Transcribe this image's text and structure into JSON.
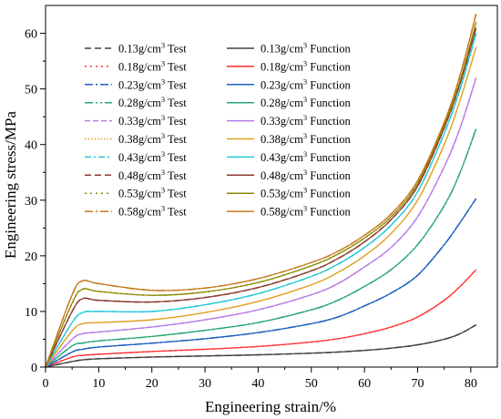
{
  "chart_data": {
    "type": "line",
    "xlabel": "Engineering strain/%",
    "ylabel": "Engineering stress/MPa",
    "xlim": [
      0,
      85
    ],
    "ylim": [
      0,
      65
    ],
    "xticks": [
      0,
      10,
      20,
      30,
      40,
      50,
      60,
      70,
      80
    ],
    "yticks": [
      0,
      10,
      20,
      30,
      40,
      50,
      60
    ],
    "grid": false,
    "legend_position": "top-left",
    "x": [
      0,
      5,
      7,
      10,
      20,
      30,
      40,
      50,
      55,
      60,
      65,
      70,
      75,
      78,
      81
    ],
    "series": [
      {
        "density": "0.13",
        "kind": "Test",
        "name": "0.13g/cm3 Test",
        "color": "#404040",
        "dash": "7,4",
        "values": [
          0,
          1.0,
          1.3,
          1.5,
          1.8,
          2.0,
          2.2,
          2.5,
          2.7,
          3.0,
          3.4,
          4.0,
          5.0,
          6.0,
          7.6
        ]
      },
      {
        "density": "0.18",
        "kind": "Test",
        "name": "0.18g/cm3 Test",
        "color": "#ff3333",
        "dash": "2,4",
        "values": [
          0,
          1.8,
          2.1,
          2.3,
          2.8,
          3.2,
          3.7,
          4.5,
          5.1,
          6.0,
          7.2,
          9.0,
          12.0,
          14.5,
          17.5
        ]
      },
      {
        "density": "0.23",
        "kind": "Test",
        "name": "0.23g/cm3 Test",
        "color": "#1f5fbf",
        "dash": "9,3,2,3",
        "values": [
          0,
          2.7,
          3.2,
          3.6,
          4.3,
          5.1,
          6.2,
          7.8,
          9.0,
          11.0,
          13.3,
          16.5,
          22.0,
          26.0,
          30.3
        ]
      },
      {
        "density": "0.28",
        "kind": "Test",
        "name": "0.28g/cm3 Test",
        "color": "#2aa870",
        "dash": "9,3,2,3,2,3",
        "values": [
          0,
          3.8,
          4.3,
          4.7,
          5.5,
          6.6,
          8.0,
          10.3,
          12.0,
          14.5,
          17.5,
          22.0,
          29.0,
          35.0,
          42.8
        ]
      },
      {
        "density": "0.33",
        "kind": "Test",
        "name": "0.33g/cm3 Test",
        "color": "#b87de6",
        "dash": "6,3",
        "values": [
          0,
          5.0,
          6.0,
          6.3,
          7.2,
          8.5,
          10.3,
          13.0,
          15.0,
          18.0,
          21.5,
          27.0,
          36.0,
          43.0,
          52.0
        ]
      },
      {
        "density": "0.38",
        "kind": "Test",
        "name": "0.38g/cm3 Test",
        "color": "#e0a020",
        "dash": "1.5,2",
        "values": [
          0,
          6.5,
          7.8,
          8.0,
          8.5,
          9.8,
          11.8,
          14.8,
          17.0,
          20.0,
          24.0,
          30.0,
          40.0,
          48.0,
          57.5
        ]
      },
      {
        "density": "0.43",
        "kind": "Test",
        "name": "0.43g/cm3 Test",
        "color": "#22c8d8",
        "dash": "7,3,2,3",
        "values": [
          0,
          8.0,
          9.8,
          10.0,
          10.0,
          11.2,
          13.2,
          16.3,
          18.5,
          21.5,
          25.5,
          31.5,
          42.0,
          50.0,
          60.0
        ]
      },
      {
        "density": "0.48",
        "kind": "Test",
        "name": "0.48g/cm3 Test",
        "color": "#8b3a2e",
        "dash": "7,4",
        "values": [
          0,
          10.0,
          12.3,
          12.0,
          11.7,
          12.5,
          14.3,
          17.3,
          19.5,
          22.5,
          26.5,
          32.5,
          43.0,
          51.0,
          61.0
        ]
      },
      {
        "density": "0.53",
        "kind": "Test",
        "name": "0.53g/cm3 Test",
        "color": "#8a8a00",
        "dash": "2,4",
        "values": [
          0,
          11.5,
          14.0,
          13.6,
          12.9,
          13.5,
          15.2,
          18.2,
          20.3,
          23.2,
          27.0,
          33.0,
          43.5,
          51.5,
          62.0
        ]
      },
      {
        "density": "0.58",
        "kind": "Test",
        "name": "0.58g/cm3 Test",
        "color": "#c8781e",
        "dash": "9,3,2,3",
        "values": [
          0,
          13.0,
          15.5,
          15.0,
          13.8,
          14.2,
          15.9,
          18.8,
          20.8,
          23.7,
          27.5,
          33.5,
          44.0,
          52.5,
          63.5
        ]
      },
      {
        "density": "0.13",
        "kind": "Function",
        "name": "0.13g/cm3 Function",
        "color": "#404040",
        "dash": "",
        "values": [
          0,
          1.0,
          1.3,
          1.5,
          1.8,
          2.0,
          2.2,
          2.5,
          2.7,
          3.0,
          3.4,
          4.0,
          5.0,
          6.0,
          7.6
        ]
      },
      {
        "density": "0.18",
        "kind": "Function",
        "name": "0.18g/cm3 Function",
        "color": "#ff2a2a",
        "dash": "",
        "values": [
          0,
          1.8,
          2.1,
          2.3,
          2.8,
          3.2,
          3.7,
          4.5,
          5.1,
          6.0,
          7.2,
          9.0,
          12.0,
          14.5,
          17.5
        ]
      },
      {
        "density": "0.23",
        "kind": "Function",
        "name": "0.23g/cm3 Function",
        "color": "#1f5fbf",
        "dash": "",
        "values": [
          0,
          2.7,
          3.2,
          3.6,
          4.3,
          5.1,
          6.2,
          7.8,
          9.0,
          11.0,
          13.3,
          16.5,
          22.0,
          26.0,
          30.3
        ]
      },
      {
        "density": "0.28",
        "kind": "Function",
        "name": "0.28g/cm3 Function",
        "color": "#2aa870",
        "dash": "",
        "values": [
          0,
          3.8,
          4.3,
          4.7,
          5.5,
          6.6,
          8.0,
          10.3,
          12.0,
          14.5,
          17.5,
          22.0,
          29.0,
          35.0,
          42.8
        ]
      },
      {
        "density": "0.33",
        "kind": "Function",
        "name": "0.33g/cm3 Function",
        "color": "#b87de6",
        "dash": "",
        "values": [
          0,
          5.0,
          6.0,
          6.3,
          7.2,
          8.5,
          10.3,
          13.0,
          15.0,
          18.0,
          21.5,
          27.0,
          36.0,
          43.0,
          52.0
        ]
      },
      {
        "density": "0.38",
        "kind": "Function",
        "name": "0.38g/cm3 Function",
        "color": "#e0a020",
        "dash": "",
        "values": [
          0,
          6.5,
          7.8,
          8.0,
          8.5,
          9.8,
          11.8,
          14.8,
          17.0,
          20.0,
          24.0,
          30.0,
          40.0,
          48.0,
          57.5
        ]
      },
      {
        "density": "0.43",
        "kind": "Function",
        "name": "0.43g/cm3 Function",
        "color": "#22c8d8",
        "dash": "",
        "values": [
          0,
          8.0,
          9.8,
          10.0,
          10.0,
          11.2,
          13.2,
          16.3,
          18.5,
          21.5,
          25.5,
          31.5,
          42.0,
          50.0,
          60.0
        ]
      },
      {
        "density": "0.48",
        "kind": "Function",
        "name": "0.48g/cm3 Function",
        "color": "#8b3a2e",
        "dash": "",
        "values": [
          0,
          10.0,
          12.3,
          12.0,
          11.7,
          12.5,
          14.3,
          17.3,
          19.5,
          22.5,
          26.5,
          32.5,
          43.0,
          51.0,
          61.0
        ]
      },
      {
        "density": "0.53",
        "kind": "Function",
        "name": "0.53g/cm3 Function",
        "color": "#8a8a00",
        "dash": "",
        "values": [
          0,
          11.5,
          14.0,
          13.6,
          12.9,
          13.5,
          15.2,
          18.2,
          20.3,
          23.2,
          27.0,
          33.0,
          43.5,
          51.5,
          62.0
        ]
      },
      {
        "density": "0.58",
        "kind": "Function",
        "name": "0.58g/cm3 Function",
        "color": "#c8781e",
        "dash": "",
        "values": [
          0,
          13.0,
          15.5,
          15.0,
          13.8,
          14.2,
          15.9,
          18.8,
          20.8,
          23.7,
          27.5,
          33.5,
          44.0,
          52.5,
          63.5
        ]
      }
    ]
  }
}
